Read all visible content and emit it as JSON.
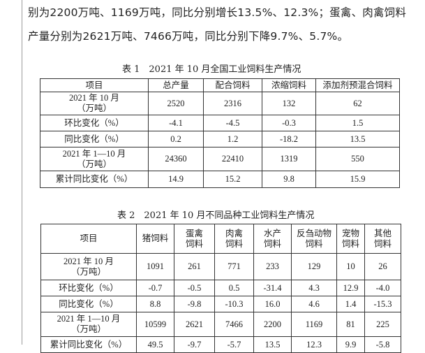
{
  "paragraph": {
    "line1": "别为2200万吨、1169万吨，同比分别增长13.5%、12.3%；蛋禽、肉禽饲料",
    "line2": "产量分别为2621万吨、7466万吨，同比分别下降9.7%、5.7%。"
  },
  "table1": {
    "caption": "表 1　2021 年 10 月全国工业饲料生产情况",
    "headers": [
      "项目",
      "总产量",
      "配合饲料",
      "浓缩饲料",
      "添加剂预混合饲料"
    ],
    "rows": [
      {
        "label": "2021 年 10 月",
        "sub": "（万吨）",
        "values": [
          "2520",
          "2316",
          "132",
          "62"
        ]
      },
      {
        "label": "环比变化（%）",
        "values": [
          "-4.1",
          "-4.5",
          "-0.3",
          "1.5"
        ]
      },
      {
        "label": "同比变化（%）",
        "values": [
          "0.2",
          "1.2",
          "-18.2",
          "13.5"
        ]
      },
      {
        "label": "2021 年 1—10 月",
        "sub": "（万吨）",
        "values": [
          "24360",
          "22410",
          "1319",
          "550"
        ]
      },
      {
        "label": "累计同比变化（%）",
        "values": [
          "14.9",
          "15.2",
          "9.8",
          "15.9"
        ]
      }
    ]
  },
  "table2": {
    "caption": "表 2　2021 年 10 月不同品种工业饲料生产情况",
    "headers": [
      {
        "l1": "项目"
      },
      {
        "l1": "猪饲料"
      },
      {
        "l1": "蛋禽",
        "l2": "饲料"
      },
      {
        "l1": "肉禽",
        "l2": "饲料"
      },
      {
        "l1": "水产",
        "l2": "饲料"
      },
      {
        "l1": "反刍动物",
        "l2": "饲料"
      },
      {
        "l1": "宠物",
        "l2": "饲料"
      },
      {
        "l1": "其他",
        "l2": "饲料"
      }
    ],
    "rows": [
      {
        "label": "2021 年 10 月",
        "sub": "（万吨）",
        "values": [
          "1091",
          "261",
          "771",
          "233",
          "129",
          "10",
          "26"
        ]
      },
      {
        "label": "环比变化（%）",
        "values": [
          "-0.7",
          "-0.5",
          "0.5",
          "-31.4",
          "4.3",
          "12.9",
          "-4.0"
        ]
      },
      {
        "label": "同比变化（%）",
        "values": [
          "8.8",
          "-9.8",
          "-10.3",
          "16.0",
          "4.6",
          "1.4",
          "-15.3"
        ]
      },
      {
        "label": "2021 年 1—10 月",
        "sub": "（万吨）",
        "values": [
          "10599",
          "2621",
          "7466",
          "2200",
          "1169",
          "81",
          "225"
        ]
      },
      {
        "label": "累计同比变化（%）",
        "values": [
          "49.5",
          "-9.7",
          "-5.7",
          "13.5",
          "12.3",
          "9.9",
          "-5.8"
        ]
      }
    ]
  }
}
